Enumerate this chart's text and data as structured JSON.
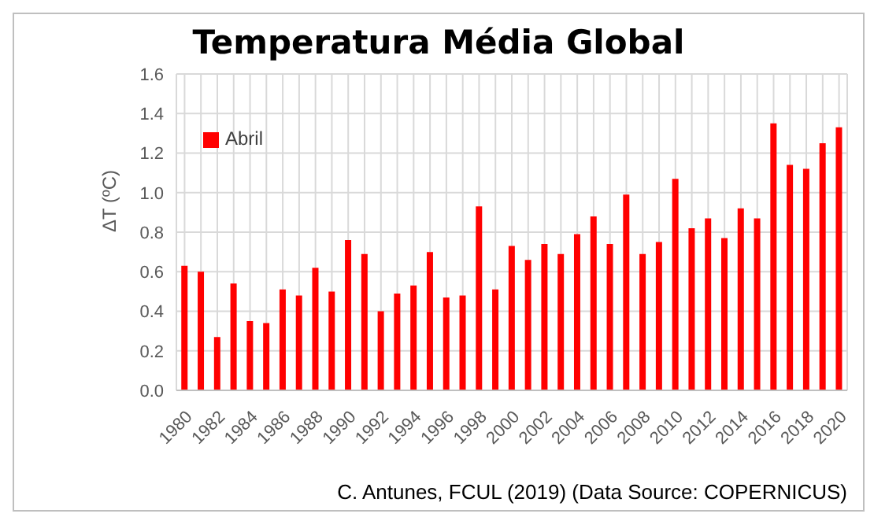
{
  "chart_data": {
    "type": "bar",
    "title": "Temperatura Média Global",
    "ylabel": "ΔT (ºC)",
    "categories": [
      "1980",
      null,
      "1982",
      null,
      "1984",
      null,
      "1986",
      null,
      "1988",
      null,
      "1990",
      null,
      "1992",
      null,
      "1994",
      null,
      "1996",
      null,
      "1998",
      null,
      "2000",
      null,
      "2002",
      null,
      "2004",
      null,
      "2006",
      null,
      "2008",
      null,
      "2010",
      null,
      "2012",
      null,
      "2014",
      null,
      "2016",
      null,
      "2018",
      null,
      "2020"
    ],
    "series": [
      {
        "name": "Abril",
        "color": "#ff0000",
        "values": [
          0.63,
          0.6,
          0.27,
          0.54,
          0.35,
          0.34,
          0.51,
          0.48,
          0.62,
          0.5,
          0.76,
          0.69,
          0.4,
          0.49,
          0.53,
          0.7,
          0.47,
          0.48,
          0.93,
          0.51,
          0.73,
          0.66,
          0.74,
          0.69,
          0.79,
          0.88,
          0.74,
          0.99,
          0.69,
          0.75,
          1.07,
          0.82,
          0.87,
          0.77,
          0.92,
          0.87,
          1.35,
          1.14,
          1.12,
          1.25,
          1.33
        ]
      }
    ],
    "ylim": [
      0,
      1.6
    ],
    "yticks": [
      {
        "value": 0,
        "label": "0.0"
      },
      {
        "value": 0.2,
        "label": "0.2"
      },
      {
        "value": 0.4,
        "label": "0.4"
      },
      {
        "value": 0.6,
        "label": "0.6"
      },
      {
        "value": 0.8,
        "label": "0.8"
      },
      {
        "value": 1,
        "label": "1.0"
      },
      {
        "value": 1.2,
        "label": "1.2"
      },
      {
        "value": 1.4,
        "label": "1.4"
      },
      {
        "value": 1.6,
        "label": "1.6"
      }
    ],
    "grid": true,
    "legend": "top left",
    "annotations": [
      "C. Antunes, FCUL (2019)  (Data Source: COPERNICUS)"
    ]
  }
}
